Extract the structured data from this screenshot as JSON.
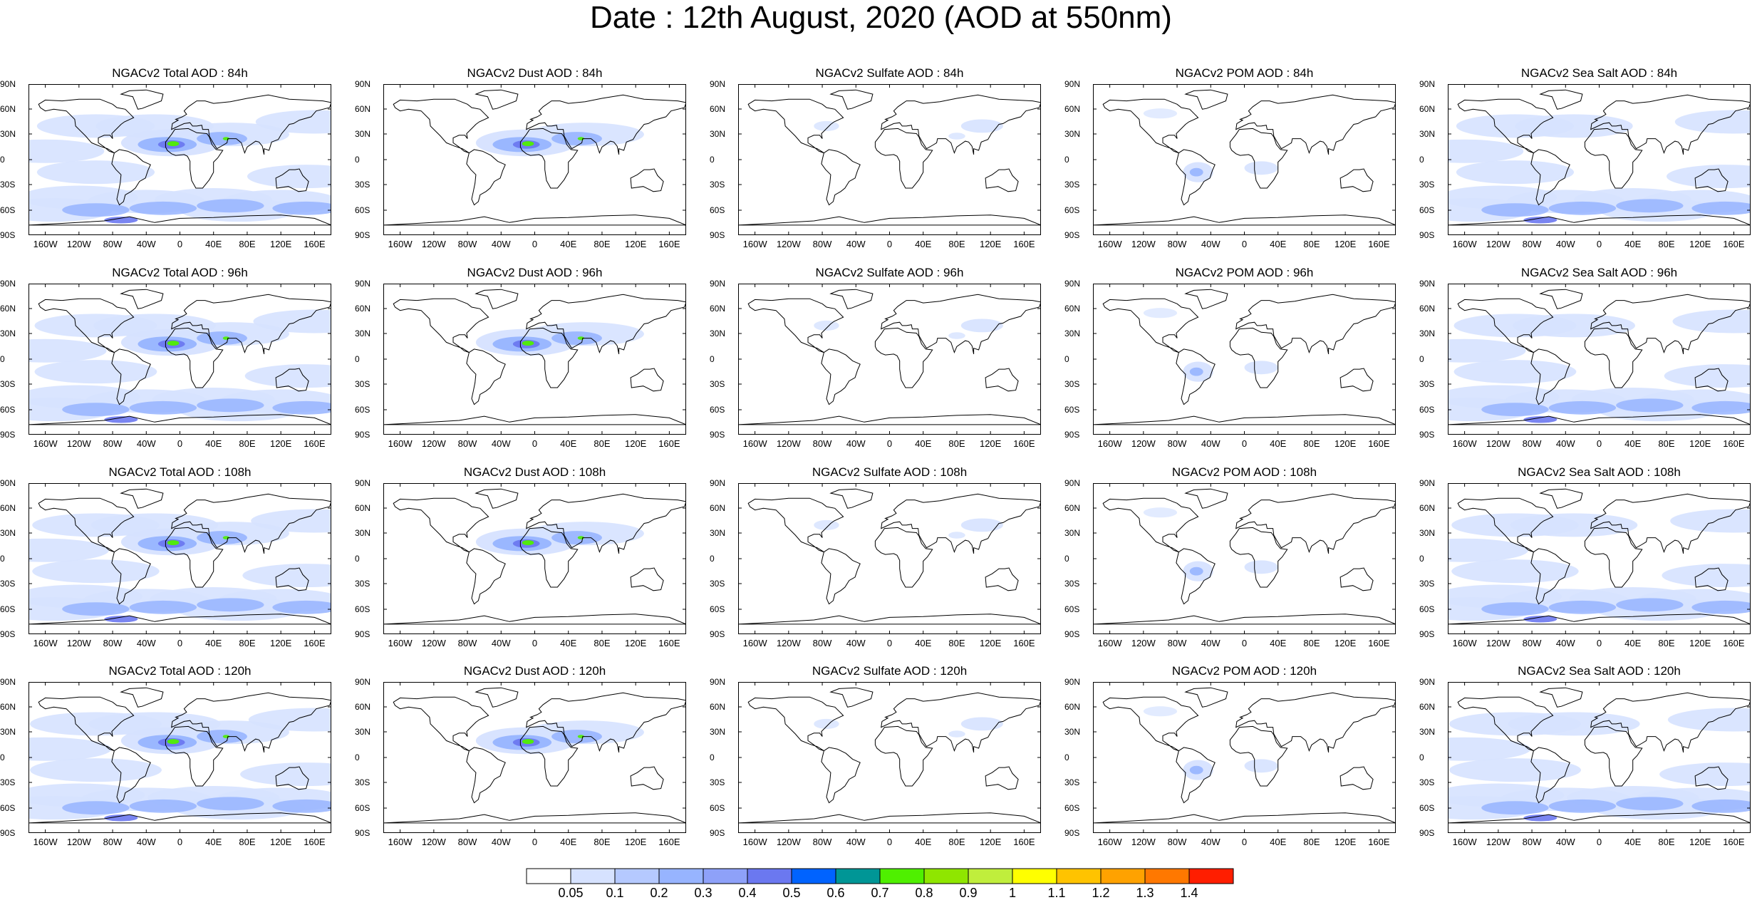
{
  "title": "Date : 12th August, 2020 (AOD at 550nm)",
  "panels": [
    [
      "NGACv2 Total AOD : 84h",
      "NGACv2 Dust AOD : 84h",
      "NGACv2 Sulfate AOD : 84h",
      "NGACv2 POM AOD : 84h",
      "NGACv2 Sea Salt AOD : 84h"
    ],
    [
      "NGACv2 Total AOD : 96h",
      "NGACv2 Dust AOD : 96h",
      "NGACv2 Sulfate AOD : 96h",
      "NGACv2 POM AOD : 96h",
      "NGACv2 Sea Salt AOD : 96h"
    ],
    [
      "NGACv2 Total AOD : 108h",
      "NGACv2 Dust AOD : 108h",
      "NGACv2 Sulfate AOD : 108h",
      "NGACv2 POM AOD : 108h",
      "NGACv2 Sea Salt AOD : 108h"
    ],
    [
      "NGACv2 Total AOD : 120h",
      "NGACv2 Dust AOD : 120h",
      "NGACv2 Sulfate AOD : 120h",
      "NGACv2 POM AOD : 120h",
      "NGACv2 Sea Salt  AOD : 120h"
    ]
  ],
  "lat_labels": [
    "90N",
    "60N",
    "30N",
    "0",
    "30S",
    "60S",
    "90S"
  ],
  "lon_labels": [
    "160W",
    "120W",
    "80W",
    "40W",
    "0",
    "40E",
    "80E",
    "120E",
    "160E"
  ],
  "colorbar": {
    "levels": [
      "0.05",
      "0.1",
      "0.2",
      "0.3",
      "0.4",
      "0.5",
      "0.6",
      "0.7",
      "0.8",
      "0.9",
      "1",
      "1.1",
      "1.2",
      "1.3",
      "1.4"
    ],
    "colors": [
      "#ffffff",
      "#d6e2ff",
      "#b5c9ff",
      "#97b4ff",
      "#8ea1f9",
      "#6b78f0",
      "#0063ff",
      "#009696",
      "#4ff000",
      "#8fe600",
      "#c0ee3c",
      "#ffff00",
      "#ffc300",
      "#ffa200",
      "#ff7800",
      "#ff1e00"
    ]
  },
  "colors": {
    "land_outline": "#000000",
    "ocean": "#ffffff",
    "aod_low": "#d6e2ff",
    "aod_mid": "#97b4ff",
    "aod_high": "#6b78f0",
    "dust_peak": "#4ff000"
  }
}
